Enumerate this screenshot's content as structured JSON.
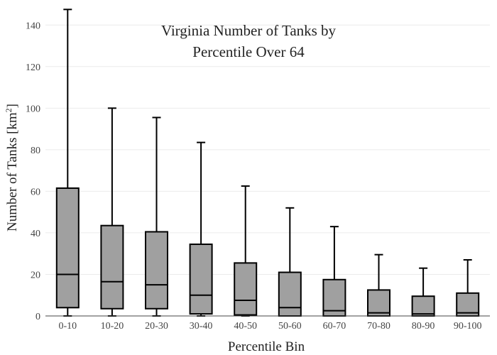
{
  "chart_data": {
    "type": "box",
    "title_line1": "Virginia Number of Tanks by",
    "title_line2": "Percentile Over 64",
    "xlabel": "Percentile Bin",
    "ylabel_main": "Number of Tanks  [km",
    "ylabel_sup": "2",
    "ylabel_close": "]",
    "ylim": [
      0,
      150
    ],
    "yticks": [
      0,
      20,
      40,
      60,
      80,
      100,
      120,
      140
    ],
    "grid": true,
    "box_color": "#a0a0a0",
    "line_color": "#000000",
    "categories": [
      "0-10",
      "10-20",
      "20-30",
      "30-40",
      "40-50",
      "50-60",
      "60-70",
      "70-80",
      "80-90",
      "90-100"
    ],
    "boxes": [
      {
        "min": 0,
        "q1": 4,
        "median": 20,
        "q3": 61.5,
        "max": 147.5
      },
      {
        "min": 0,
        "q1": 3.5,
        "median": 16.5,
        "q3": 43.5,
        "max": 100
      },
      {
        "min": 0,
        "q1": 3.5,
        "median": 15,
        "q3": 40.5,
        "max": 95.5
      },
      {
        "min": 0,
        "q1": 1,
        "median": 10,
        "q3": 34.5,
        "max": 83.5
      },
      {
        "min": 0,
        "q1": 0.5,
        "median": 7.5,
        "q3": 25.5,
        "max": 62.5
      },
      {
        "min": 0,
        "q1": 0,
        "median": 4,
        "q3": 21,
        "max": 52
      },
      {
        "min": 0,
        "q1": 0,
        "median": 2.5,
        "q3": 17.5,
        "max": 43
      },
      {
        "min": 0,
        "q1": 0,
        "median": 1.5,
        "q3": 12.5,
        "max": 29.5
      },
      {
        "min": 0,
        "q1": 0,
        "median": 1,
        "q3": 9.5,
        "max": 23
      },
      {
        "min": 0,
        "q1": 0,
        "median": 1.5,
        "q3": 11,
        "max": 27
      }
    ]
  }
}
